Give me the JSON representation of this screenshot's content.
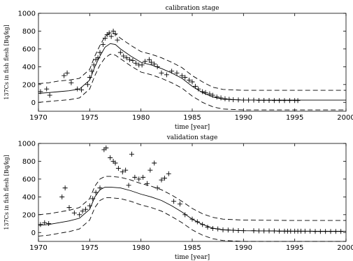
{
  "chart_data": [
    {
      "type": "line",
      "title": "calibration stage",
      "xlabel": "time [year]",
      "ylabel": "137Cs in fish flesh [Bq/kg]",
      "xlim": [
        1970,
        2000
      ],
      "ylim": [
        -100,
        1000
      ],
      "xticks": [
        "1970",
        "1975",
        "1980",
        "1985",
        "1990",
        "1995",
        "2000"
      ],
      "yticks": [
        "0",
        "200",
        "400",
        "600",
        "800",
        "1000"
      ],
      "grid": false,
      "series": [
        {
          "role": "model",
          "style": "solid",
          "x": [
            1970,
            1971,
            1972,
            1973,
            1974,
            1975,
            1975.5,
            1976,
            1976.5,
            1977,
            1977.5,
            1978,
            1979,
            1980,
            1981,
            1982,
            1983,
            1984,
            1985,
            1986,
            1987,
            1988,
            1990,
            1995,
            2000
          ],
          "y": [
            100,
            110,
            120,
            130,
            150,
            250,
            400,
            520,
            620,
            660,
            650,
            600,
            520,
            450,
            420,
            380,
            330,
            270,
            180,
            110,
            60,
            35,
            25,
            25,
            25
          ]
        },
        {
          "role": "upper bound",
          "style": "dashed",
          "x": [
            1970,
            1971,
            1972,
            1973,
            1974,
            1975,
            1975.5,
            1976,
            1976.5,
            1977,
            1977.5,
            1978,
            1979,
            1980,
            1981,
            1982,
            1983,
            1984,
            1985,
            1986,
            1987,
            1988,
            1990,
            1995,
            2000
          ],
          "y": [
            210,
            220,
            240,
            250,
            270,
            370,
            520,
            640,
            740,
            780,
            770,
            720,
            640,
            570,
            540,
            500,
            450,
            390,
            300,
            230,
            170,
            145,
            135,
            135,
            135
          ]
        },
        {
          "role": "lower bound",
          "style": "dashed",
          "x": [
            1970,
            1971,
            1972,
            1973,
            1974,
            1975,
            1975.5,
            1976,
            1976.5,
            1977,
            1977.5,
            1978,
            1979,
            1980,
            1981,
            1982,
            1983,
            1984,
            1985,
            1986,
            1987,
            1988,
            1990,
            1995,
            2000
          ],
          "y": [
            0,
            10,
            20,
            30,
            50,
            150,
            300,
            420,
            500,
            540,
            530,
            490,
            410,
            340,
            310,
            270,
            220,
            160,
            70,
            0,
            -50,
            -75,
            -85,
            -85,
            -85
          ]
        },
        {
          "role": "observed",
          "style": "markers",
          "x": [
            1970.2,
            1970.8,
            1971.1,
            1972.5,
            1972.8,
            1973.2,
            1973.8,
            1974.2,
            1974.8,
            1975.0,
            1975.2,
            1975.4,
            1975.6,
            1975.8,
            1976.0,
            1976.3,
            1976.5,
            1976.7,
            1976.9,
            1977.1,
            1977.3,
            1977.5,
            1977.7,
            1978.0,
            1978.3,
            1978.6,
            1978.9,
            1979.2,
            1979.5,
            1979.8,
            1980.1,
            1980.4,
            1980.8,
            1981.0,
            1981.3,
            1981.6,
            1982.0,
            1982.5,
            1983.0,
            1983.5,
            1984.0,
            1984.3,
            1984.7,
            1985.0,
            1985.3,
            1985.6,
            1986.0,
            1986.3,
            1986.7,
            1987.0,
            1987.4,
            1987.8,
            1988.2,
            1988.6,
            1989.0,
            1989.5,
            1990.0,
            1990.5,
            1991.0,
            1991.5,
            1992.0,
            1992.5,
            1993.0,
            1993.5,
            1994.0,
            1994.5,
            1995.0,
            1995.3
          ],
          "y": [
            120,
            150,
            80,
            300,
            330,
            220,
            150,
            140,
            200,
            280,
            350,
            420,
            480,
            500,
            560,
            650,
            720,
            760,
            780,
            740,
            800,
            770,
            700,
            560,
            520,
            500,
            480,
            470,
            440,
            420,
            420,
            460,
            480,
            450,
            430,
            400,
            330,
            310,
            350,
            330,
            300,
            280,
            250,
            230,
            180,
            150,
            120,
            110,
            95,
            80,
            60,
            50,
            40,
            35,
            30,
            28,
            25,
            25,
            25,
            22,
            22,
            22,
            20,
            20,
            20,
            20,
            20,
            20
          ]
        }
      ]
    },
    {
      "type": "line",
      "title": "validation stage",
      "xlabel": "time [year]",
      "ylabel": "137Cs in fish flesh [Bq/kg]",
      "xlim": [
        1970,
        2000
      ],
      "ylim": [
        -100,
        1000
      ],
      "xticks": [
        "1970",
        "1975",
        "1980",
        "1985",
        "1990",
        "1995",
        "2000"
      ],
      "yticks": [
        "0",
        "200",
        "400",
        "600",
        "800",
        "1000"
      ],
      "grid": false,
      "series": [
        {
          "role": "model",
          "style": "solid",
          "x": [
            1970,
            1971,
            1972,
            1973,
            1974,
            1975,
            1975.5,
            1976,
            1976.5,
            1977,
            1978,
            1979,
            1980,
            1981,
            1982,
            1983,
            1984,
            1985,
            1986,
            1987,
            1988,
            1990,
            1995,
            2000
          ],
          "y": [
            80,
            90,
            110,
            130,
            160,
            260,
            400,
            480,
            510,
            510,
            500,
            470,
            430,
            400,
            360,
            300,
            230,
            150,
            90,
            50,
            30,
            20,
            15,
            15
          ]
        },
        {
          "role": "upper bound",
          "style": "dashed",
          "x": [
            1970,
            1971,
            1972,
            1973,
            1974,
            1975,
            1975.5,
            1976,
            1976.5,
            1977,
            1978,
            1979,
            1980,
            1981,
            1982,
            1983,
            1984,
            1985,
            1986,
            1987,
            1988,
            1990,
            1995,
            2000
          ],
          "y": [
            200,
            210,
            230,
            250,
            280,
            380,
            520,
            600,
            630,
            630,
            620,
            590,
            550,
            520,
            480,
            420,
            350,
            270,
            210,
            170,
            150,
            140,
            135,
            135
          ]
        },
        {
          "role": "lower bound",
          "style": "dashed",
          "x": [
            1970,
            1971,
            1972,
            1973,
            1974,
            1975,
            1975.5,
            1976,
            1976.5,
            1977,
            1978,
            1979,
            1980,
            1981,
            1982,
            1983,
            1984,
            1985,
            1986,
            1987,
            1988,
            1990,
            1995,
            2000
          ],
          "y": [
            -40,
            -30,
            -10,
            10,
            40,
            140,
            280,
            360,
            390,
            390,
            380,
            350,
            310,
            280,
            240,
            180,
            110,
            30,
            -30,
            -70,
            -90,
            -100,
            -100,
            -100
          ]
        },
        {
          "role": "observed",
          "style": "markers",
          "x": [
            1970.2,
            1970.6,
            1971.0,
            1972.3,
            1972.6,
            1973.0,
            1973.5,
            1974.0,
            1974.3,
            1974.6,
            1975.0,
            1975.3,
            1975.6,
            1976.0,
            1976.4,
            1976.6,
            1977.0,
            1977.3,
            1977.5,
            1977.8,
            1978.2,
            1978.5,
            1978.8,
            1979.1,
            1979.4,
            1979.8,
            1980.2,
            1980.6,
            1980.9,
            1981.3,
            1981.6,
            1982.0,
            1982.3,
            1982.7,
            1983.2,
            1983.8,
            1984.3,
            1985.0,
            1985.5,
            1986.0,
            1986.5,
            1987.0,
            1987.5,
            1988.0,
            1988.5,
            1989.0,
            1989.5,
            1990.0,
            1991.0,
            1991.5,
            1992.0,
            1992.5,
            1993.0,
            1993.5,
            1994.0,
            1994.3,
            1994.6,
            1995.0,
            1995.3,
            1995.6,
            1996.0,
            1996.5,
            1997.0,
            1997.5,
            1998.0,
            1998.5,
            1999.0,
            1999.5
          ],
          "y": [
            90,
            110,
            100,
            400,
            500,
            280,
            220,
            200,
            240,
            260,
            300,
            380,
            450,
            500,
            930,
            950,
            840,
            800,
            780,
            720,
            680,
            700,
            530,
            880,
            620,
            600,
            620,
            550,
            700,
            780,
            500,
            590,
            610,
            660,
            350,
            320,
            200,
            150,
            120,
            90,
            60,
            45,
            40,
            30,
            28,
            25,
            22,
            20,
            20,
            18,
            18,
            18,
            18,
            15,
            15,
            15,
            15,
            15,
            15,
            15,
            15,
            15,
            12,
            12,
            12,
            12,
            12,
            12
          ]
        }
      ]
    }
  ]
}
